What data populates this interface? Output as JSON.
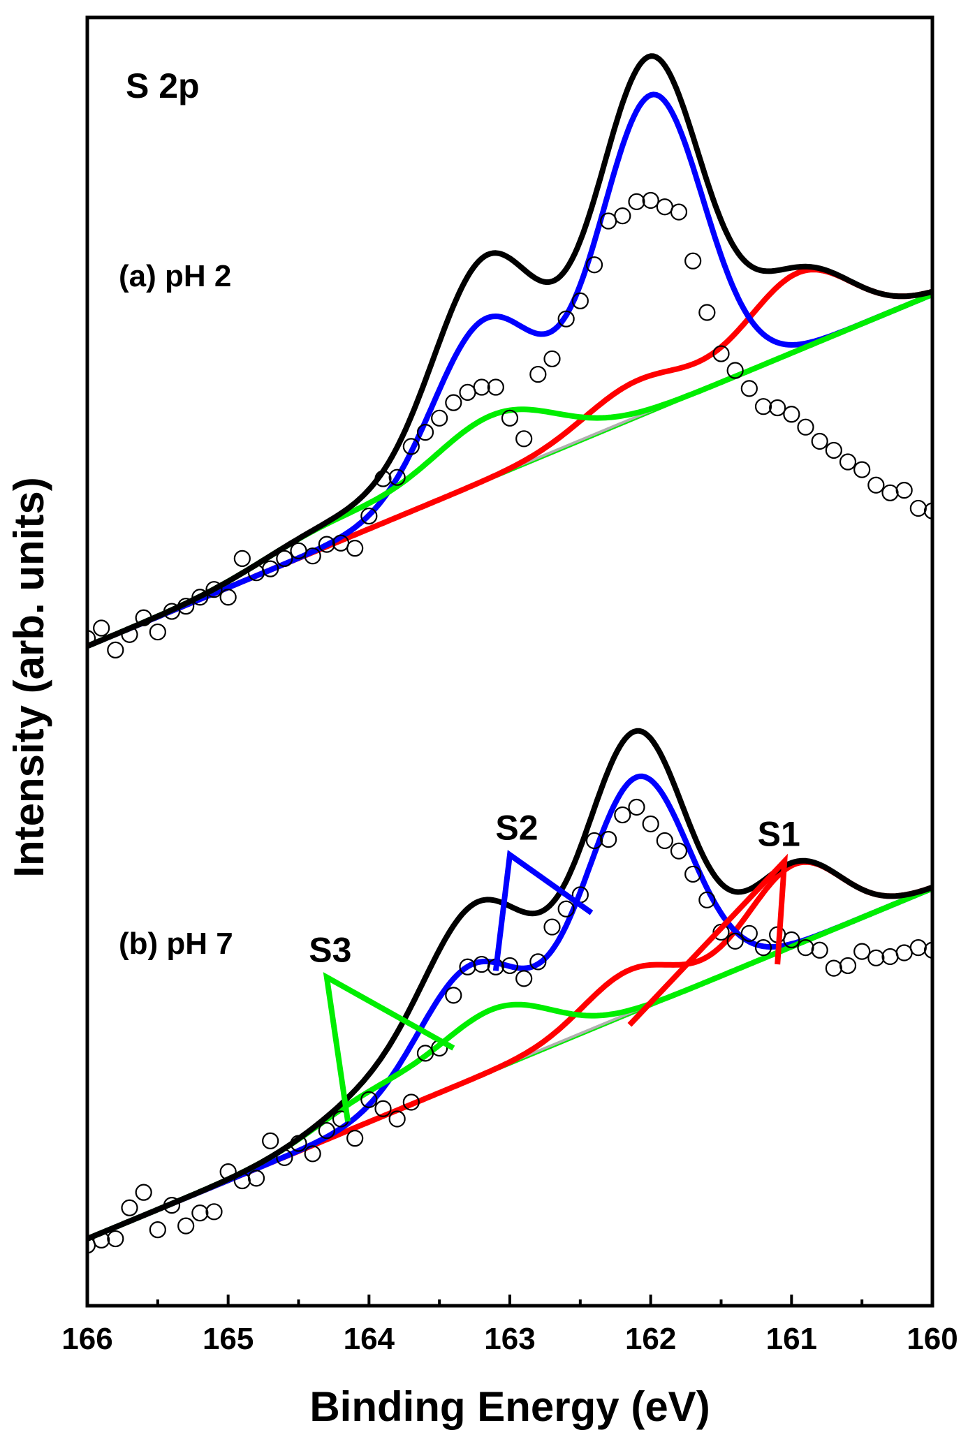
{
  "chart_data": {
    "type": "line",
    "title": "S 2p",
    "xlabel": "Binding Energy (eV)",
    "ylabel": "Intensity (arb. units)",
    "xlim": [
      166,
      160
    ],
    "x_reversed": true,
    "ylim": [
      0,
      100
    ],
    "x_ticks": [
      166,
      165,
      164,
      163,
      162,
      161,
      160
    ],
    "x_tick_labels": [
      "166",
      "165",
      "164",
      "163",
      "162",
      "161",
      "160"
    ],
    "y_ticks_shown": false,
    "grid": false,
    "colors": {
      "envelope": "#000000",
      "S1": "#ff0000",
      "S2": "#0000ff",
      "S3": "#00ee00",
      "background": "#b0b0b0",
      "data_markers": "#000000"
    },
    "panels": [
      {
        "label": "(a) pH 2",
        "background": {
          "x": [
            166,
            160
          ],
          "y": [
            51.2,
            78.5
          ]
        },
        "peaks": [
          {
            "name": "S1",
            "color": "#ff0000",
            "components": [
              {
                "center": 160.95,
                "height": 6.0,
                "sigma": 0.37
              },
              {
                "center": 162.1,
                "height": 2.8,
                "sigma": 0.37
              }
            ]
          },
          {
            "name": "S2",
            "color": "#0000ff",
            "components": [
              {
                "center": 162.0,
                "height": 24.5,
                "sigma": 0.37
              },
              {
                "center": 163.18,
                "height": 12.4,
                "sigma": 0.37
              }
            ]
          },
          {
            "name": "S3",
            "color": "#00ee00",
            "components": [
              {
                "center": 163.12,
                "height": 4.8,
                "sigma": 0.45
              },
              {
                "center": 164.3,
                "height": 1.6,
                "sigma": 0.45
              }
            ]
          }
        ],
        "data_points": {
          "x": [
            166.0,
            165.9,
            165.8,
            165.7,
            165.6,
            165.5,
            165.4,
            165.3,
            165.2,
            165.1,
            165.0,
            164.9,
            164.8,
            164.7,
            164.6,
            164.5,
            164.4,
            164.3,
            164.2,
            164.1,
            164.0,
            163.9,
            163.8,
            163.7,
            163.6,
            163.5,
            163.4,
            163.3,
            163.2,
            163.1,
            163.0,
            162.9,
            162.8,
            162.7,
            162.6,
            162.5,
            162.4,
            162.3,
            162.2,
            162.1,
            162.0,
            161.9,
            161.8,
            161.7,
            161.6,
            161.5,
            161.4,
            161.3,
            161.2,
            161.1,
            161.0,
            160.9,
            160.8,
            160.7,
            160.6,
            160.5,
            160.4,
            160.3,
            160.2,
            160.1,
            160.0
          ],
          "y": [
            51.8,
            52.6,
            50.9,
            52.1,
            53.4,
            52.3,
            53.9,
            54.3,
            55.0,
            55.6,
            55.0,
            58.0,
            56.9,
            57.2,
            58.0,
            58.6,
            58.2,
            59.1,
            59.2,
            58.8,
            61.3,
            64.2,
            64.3,
            66.7,
            67.8,
            68.9,
            70.1,
            70.9,
            71.3,
            71.3,
            68.9,
            67.3,
            72.3,
            73.5,
            76.6,
            78.0,
            80.8,
            84.2,
            84.6,
            85.7,
            85.8,
            85.3,
            84.9,
            81.1,
            77.1,
            73.9,
            72.6,
            71.2,
            69.8,
            69.7,
            69.2,
            68.2,
            67.1,
            66.4,
            65.5,
            64.9,
            63.7,
            63.1,
            63.3,
            61.9,
            61.7
          ]
        }
      },
      {
        "label": "(b) pH 7",
        "background": {
          "x": [
            166,
            160
          ],
          "y": [
            5.2,
            32.4
          ]
        },
        "peaks": [
          {
            "name": "S1",
            "color": "#ff0000",
            "components": [
              {
                "center": 160.98,
                "height": 6.3,
                "sigma": 0.33
              },
              {
                "center": 162.15,
                "height": 3.4,
                "sigma": 0.33
              }
            ]
          },
          {
            "name": "S2",
            "color": "#0000ff",
            "components": [
              {
                "center": 162.1,
                "height": 18.1,
                "sigma": 0.37
              },
              {
                "center": 163.28,
                "height": 8.8,
                "sigma": 0.37
              }
            ]
          },
          {
            "name": "S3",
            "color": "#00ee00",
            "components": [
              {
                "center": 163.1,
                "height": 4.6,
                "sigma": 0.4
              },
              {
                "center": 164.0,
                "height": 2.0,
                "sigma": 0.4
              }
            ]
          }
        ],
        "data_points": {
          "x": [
            166.0,
            165.9,
            165.8,
            165.7,
            165.6,
            165.5,
            165.4,
            165.3,
            165.2,
            165.1,
            165.0,
            164.9,
            164.8,
            164.7,
            164.6,
            164.5,
            164.4,
            164.3,
            164.2,
            164.1,
            164.0,
            163.9,
            163.8,
            163.7,
            163.6,
            163.5,
            163.4,
            163.3,
            163.2,
            163.1,
            163.0,
            162.9,
            162.8,
            162.7,
            162.6,
            162.5,
            162.4,
            162.3,
            162.2,
            162.1,
            162.0,
            161.9,
            161.8,
            161.7,
            161.6,
            161.5,
            161.4,
            161.3,
            161.2,
            161.1,
            161.0,
            160.9,
            160.8,
            160.7,
            160.6,
            160.5,
            160.4,
            160.3,
            160.2,
            160.1,
            160.0
          ],
          "y": [
            4.7,
            5.1,
            5.2,
            7.6,
            8.8,
            5.9,
            7.8,
            6.2,
            7.2,
            7.3,
            10.4,
            9.7,
            9.9,
            12.8,
            11.5,
            12.6,
            11.8,
            13.6,
            14.5,
            13.0,
            16.0,
            15.3,
            14.5,
            15.8,
            19.6,
            20.0,
            24.1,
            26.3,
            26.5,
            26.3,
            26.4,
            25.4,
            26.7,
            29.4,
            30.8,
            31.9,
            36.1,
            36.2,
            38.1,
            38.7,
            37.4,
            36.1,
            35.3,
            33.5,
            31.5,
            29.0,
            28.3,
            28.9,
            27.8,
            28.8,
            28.4,
            27.8,
            27.6,
            26.2,
            26.4,
            27.5,
            27.0,
            27.1,
            27.4,
            27.8,
            27.6
          ]
        }
      }
    ],
    "annotations": [
      {
        "text": "S 2p"
      },
      {
        "text": "S1",
        "panel": 1,
        "data_x": 161.05,
        "data_y": 34.5,
        "color": "#ff0000",
        "targets": [
          [
            161.1,
            26.5
          ],
          [
            162.15,
            21.8
          ]
        ]
      },
      {
        "text": "S2",
        "panel": 1,
        "data_x": 163.0,
        "data_y": 35.0,
        "color": "#0000ff",
        "targets": [
          [
            162.42,
            30.5
          ],
          [
            163.1,
            26.0
          ]
        ]
      },
      {
        "text": "S3",
        "panel": 1,
        "data_x": 164.3,
        "data_y": 25.5,
        "color": "#00ee00",
        "targets": [
          [
            163.4,
            20.0
          ],
          [
            164.15,
            14.3
          ]
        ]
      }
    ]
  }
}
